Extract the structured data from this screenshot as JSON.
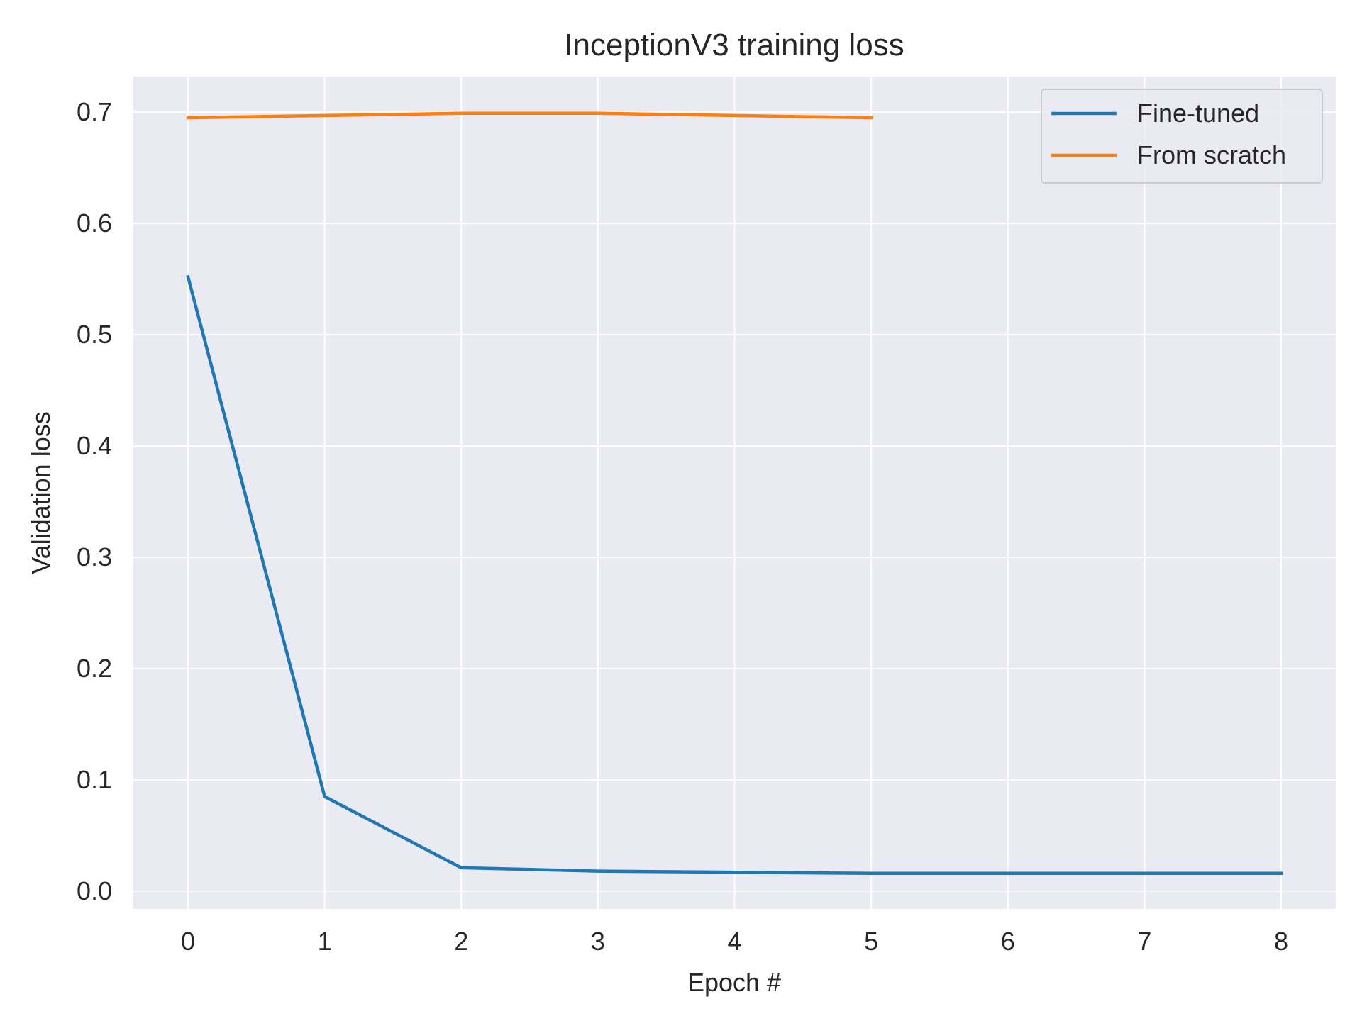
{
  "chart_data": {
    "type": "line",
    "title": "InceptionV3 training loss",
    "xlabel": "Epoch #",
    "ylabel": "Validation loss",
    "xlim": [
      -0.4,
      8.4
    ],
    "ylim": [
      -0.016,
      0.732
    ],
    "xticks": [
      0,
      1,
      2,
      3,
      4,
      5,
      6,
      7,
      8
    ],
    "xtick_labels": [
      "0",
      "1",
      "2",
      "3",
      "4",
      "5",
      "6",
      "7",
      "8"
    ],
    "yticks": [
      0.0,
      0.1,
      0.2,
      0.3,
      0.4,
      0.5,
      0.6,
      0.7
    ],
    "ytick_labels": [
      "0.0",
      "0.1",
      "0.2",
      "0.3",
      "0.4",
      "0.5",
      "0.6",
      "0.7"
    ],
    "grid": true,
    "legend_position": "top-right",
    "series": [
      {
        "name": "Fine-tuned",
        "color": "#1f77b4",
        "x": [
          0,
          1,
          2,
          3,
          4,
          5,
          6,
          7,
          8
        ],
        "y": [
          0.552,
          0.085,
          0.021,
          0.018,
          0.017,
          0.016,
          0.016,
          0.016,
          0.016
        ]
      },
      {
        "name": "From scratch",
        "color": "#ff7f0e",
        "x": [
          0,
          1,
          2,
          3,
          4,
          5
        ],
        "y": [
          0.695,
          0.697,
          0.699,
          0.699,
          0.697,
          0.695
        ]
      }
    ],
    "colors": {
      "plot_background": "#eaeaf2",
      "grid": "#ffffff",
      "text": "#262626"
    }
  }
}
